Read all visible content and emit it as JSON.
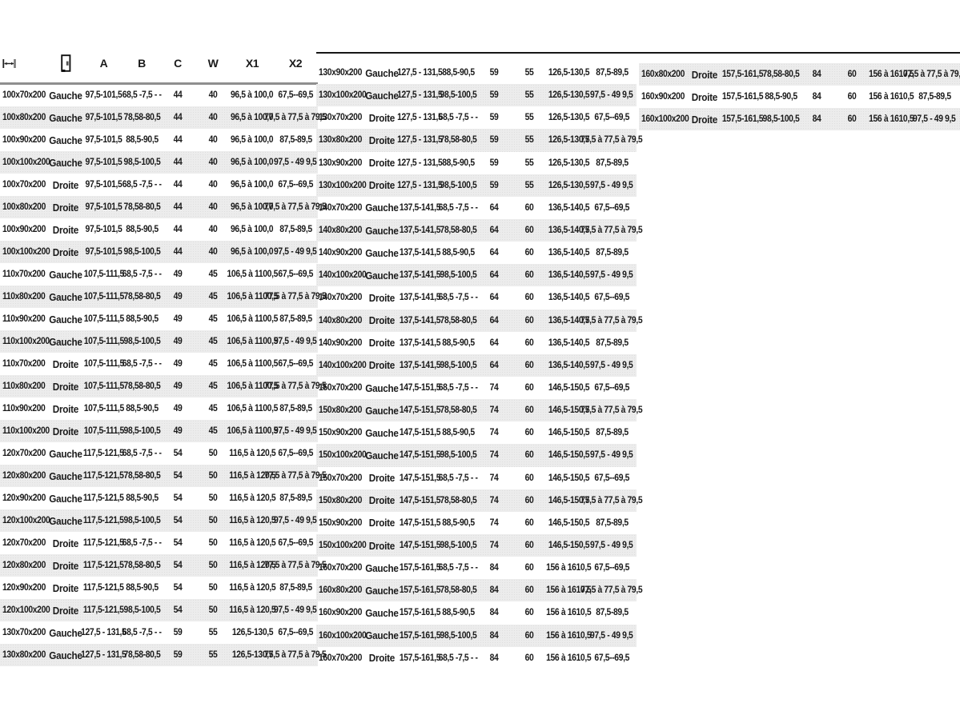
{
  "page": {
    "background": "#ffffff",
    "language": "fr"
  },
  "colors": {
    "text": "#1a1a1a",
    "stripe_gray": "#ececec",
    "header_rule": "#8f8f8f",
    "top_line": "#161616"
  },
  "header": {
    "icon_columns": [
      "width-dimension-icon",
      "door-icon"
    ],
    "labels": [
      "A",
      "B",
      "C",
      "W",
      "X1",
      "X2"
    ]
  },
  "cell_keys": [
    "size",
    "side",
    "A",
    "B",
    "C",
    "W",
    "X1",
    "X2"
  ],
  "tables": [
    {
      "id": "table-left",
      "stripe_start": "white",
      "rows": [
        [
          "100x70x200",
          "Gauche",
          "97,5-101,5",
          "68,5 -7,5 - -",
          "44",
          "40",
          "96,5 à 100,0",
          "67,5--69,5"
        ],
        [
          "100x80x200",
          "Gauche",
          "97,5-101,5",
          "78,58-80,5",
          "44",
          "40",
          "96,5 à 100,0",
          "77,5 à 77,5 à 79,5"
        ],
        [
          "100x90x200",
          "Gauche",
          "97,5-101,5",
          "88,5-90,5",
          "44",
          "40",
          "96,5 à 100,0",
          "87,5-89,5"
        ],
        [
          "100x100x200",
          "Gauche",
          "97,5-101,5",
          "98,5-100,5",
          "44",
          "40",
          "96,5 à 100,0",
          "97,5 - 49 9,5"
        ],
        [
          "100x70x200",
          "Droite",
          "97,5-101,5",
          "68,5 -7,5 - -",
          "44",
          "40",
          "96,5 à 100,0",
          "67,5--69,5"
        ],
        [
          "100x80x200",
          "Droite",
          "97,5-101,5",
          "78,58-80,5",
          "44",
          "40",
          "96,5 à 100,0",
          "77,5 à 77,5 à 79,5"
        ],
        [
          "100x90x200",
          "Droite",
          "97,5-101,5",
          "88,5-90,5",
          "44",
          "40",
          "96,5 à 100,0",
          "87,5-89,5"
        ],
        [
          "100x100x200",
          "Droite",
          "97,5-101,5",
          "98,5-100,5",
          "44",
          "40",
          "96,5 à 100,0",
          "97,5 - 49 9,5"
        ],
        [
          "110x70x200",
          "Gauche",
          "107,5-111,5",
          "68,5 -7,5 - -",
          "49",
          "45",
          "106,5 à 1100,5",
          "67,5--69,5"
        ],
        [
          "110x80x200",
          "Gauche",
          "107,5-111,5",
          "78,58-80,5",
          "49",
          "45",
          "106,5 à 1100,5",
          "77,5 à 77,5 à 79,5"
        ],
        [
          "110x90x200",
          "Gauche",
          "107,5-111,5",
          "88,5-90,5",
          "49",
          "45",
          "106,5 à 1100,5",
          "87,5-89,5"
        ],
        [
          "110x100x200",
          "Gauche",
          "107,5-111,5",
          "98,5-100,5",
          "49",
          "45",
          "106,5 à 1100,5",
          "97,5 - 49 9,5"
        ],
        [
          "110x70x200",
          "Droite",
          "107,5-111,5",
          "68,5 -7,5 - -",
          "49",
          "45",
          "106,5 à 1100,5",
          "67,5--69,5"
        ],
        [
          "110x80x200",
          "Droite",
          "107,5-111,5",
          "78,58-80,5",
          "49",
          "45",
          "106,5 à 1100,5",
          "77,5 à 77,5 à 79,5"
        ],
        [
          "110x90x200",
          "Droite",
          "107,5-111,5",
          "88,5-90,5",
          "49",
          "45",
          "106,5 à 1100,5",
          "87,5-89,5"
        ],
        [
          "110x100x200",
          "Droite",
          "107,5-111,5",
          "98,5-100,5",
          "49",
          "45",
          "106,5 à 1100,5",
          "97,5 - 49 9,5"
        ],
        [
          "120x70x200",
          "Gauche",
          "117,5-121,5",
          "68,5 -7,5 - -",
          "54",
          "50",
          "116,5 à 120,5",
          "67,5--69,5"
        ],
        [
          "120x80x200",
          "Gauche",
          "117,5-121,5",
          "78,58-80,5",
          "54",
          "50",
          "116,5 à 120,5",
          "77,5 à 77,5 à 79,5"
        ],
        [
          "120x90x200",
          "Gauche",
          "117,5-121,5",
          "88,5-90,5",
          "54",
          "50",
          "116,5 à 120,5",
          "87,5-89,5"
        ],
        [
          "120x100x200",
          "Gauche",
          "117,5-121,5",
          "98,5-100,5",
          "54",
          "50",
          "116,5 à 120,5",
          "97,5 - 49 9,5"
        ],
        [
          "120x70x200",
          "Droite",
          "117,5-121,5",
          "68,5 -7,5 - -",
          "54",
          "50",
          "116,5 à 120,5",
          "67,5--69,5"
        ],
        [
          "120x80x200",
          "Droite",
          "117,5-121,5",
          "78,58-80,5",
          "54",
          "50",
          "116,5 à 120,5",
          "77,5 à 77,5 à 79,5"
        ],
        [
          "120x90x200",
          "Droite",
          "117,5-121,5",
          "88,5-90,5",
          "54",
          "50",
          "116,5 à 120,5",
          "87,5-89,5"
        ],
        [
          "120x100x200",
          "Droite",
          "117,5-121,5",
          "98,5-100,5",
          "54",
          "50",
          "116,5 à 120,5",
          "97,5 - 49 9,5"
        ],
        [
          "130x70x200",
          "Gauche",
          "127,5 - 131,5",
          "68,5 -7,5 - -",
          "59",
          "55",
          "126,5-130,5",
          "67,5--69,5"
        ],
        [
          "130x80x200",
          "Gauche",
          "127,5 - 131,5",
          "78,58-80,5",
          "59",
          "55",
          "126,5-130,5",
          "77,5 à 77,5 à 79,5"
        ]
      ]
    },
    {
      "id": "table-middle",
      "stripe_start": "white",
      "rows": [
        [
          "130x90x200",
          "Gauche",
          "127,5 - 131,5",
          "88,5-90,5",
          "59",
          "55",
          "126,5-130,5",
          "87,5-89,5"
        ],
        [
          "130x100x200",
          "Gauche",
          "127,5 - 131,5",
          "98,5-100,5",
          "59",
          "55",
          "126,5-130,5",
          "97,5 - 49 9,5"
        ],
        [
          "130x70x200",
          "Droite",
          "127,5 - 131,5",
          "68,5 -7,5 - -",
          "59",
          "55",
          "126,5-130,5",
          "67,5--69,5"
        ],
        [
          "130x80x200",
          "Droite",
          "127,5 - 131,5",
          "78,58-80,5",
          "59",
          "55",
          "126,5-130,5",
          "77,5 à 77,5 à 79,5"
        ],
        [
          "130x90x200",
          "Droite",
          "127,5 - 131,5",
          "88,5-90,5",
          "59",
          "55",
          "126,5-130,5",
          "87,5-89,5"
        ],
        [
          "130x100x200",
          "Droite",
          "127,5 - 131,5",
          "98,5-100,5",
          "59",
          "55",
          "126,5-130,5",
          "97,5 - 49 9,5"
        ],
        [
          "140x70x200",
          "Gauche",
          "137,5-141,5",
          "68,5 -7,5 - -",
          "64",
          "60",
          "136,5-140,5",
          "67,5--69,5"
        ],
        [
          "140x80x200",
          "Gauche",
          "137,5-141,5",
          "78,58-80,5",
          "64",
          "60",
          "136,5-140,5",
          "77,5 à 77,5 à 79,5"
        ],
        [
          "140x90x200",
          "Gauche",
          "137,5-141,5",
          "88,5-90,5",
          "64",
          "60",
          "136,5-140,5",
          "87,5-89,5"
        ],
        [
          "140x100x200",
          "Gauche",
          "137,5-141,5",
          "98,5-100,5",
          "64",
          "60",
          "136,5-140,5",
          "97,5 - 49 9,5"
        ],
        [
          "140x70x200",
          "Droite",
          "137,5-141,5",
          "68,5 -7,5 - -",
          "64",
          "60",
          "136,5-140,5",
          "67,5--69,5"
        ],
        [
          "140x80x200",
          "Droite",
          "137,5-141,5",
          "78,58-80,5",
          "64",
          "60",
          "136,5-140,5",
          "77,5 à 77,5 à 79,5"
        ],
        [
          "140x90x200",
          "Droite",
          "137,5-141,5",
          "88,5-90,5",
          "64",
          "60",
          "136,5-140,5",
          "87,5-89,5"
        ],
        [
          "140x100x200",
          "Droite",
          "137,5-141,5",
          "98,5-100,5",
          "64",
          "60",
          "136,5-140,5",
          "97,5 - 49 9,5"
        ],
        [
          "150x70x200",
          "Gauche",
          "147,5-151,5",
          "68,5 -7,5 - -",
          "74",
          "60",
          "146,5-150,5",
          "67,5--69,5"
        ],
        [
          "150x80x200",
          "Gauche",
          "147,5-151,5",
          "78,58-80,5",
          "74",
          "60",
          "146,5-150,5",
          "77,5 à 77,5 à 79,5"
        ],
        [
          "150x90x200",
          "Gauche",
          "147,5-151,5",
          "88,5-90,5",
          "74",
          "60",
          "146,5-150,5",
          "87,5-89,5"
        ],
        [
          "150x100x200",
          "Gauche",
          "147,5-151,5",
          "98,5-100,5",
          "74",
          "60",
          "146,5-150,5",
          "97,5 - 49 9,5"
        ],
        [
          "150x70x200",
          "Droite",
          "147,5-151,5",
          "68,5 -7,5 - -",
          "74",
          "60",
          "146,5-150,5",
          "67,5--69,5"
        ],
        [
          "150x80x200",
          "Droite",
          "147,5-151,5",
          "78,58-80,5",
          "74",
          "60",
          "146,5-150,5",
          "77,5 à 77,5 à 79,5"
        ],
        [
          "150x90x200",
          "Droite",
          "147,5-151,5",
          "88,5-90,5",
          "74",
          "60",
          "146,5-150,5",
          "87,5-89,5"
        ],
        [
          "150x100x200",
          "Droite",
          "147,5-151,5",
          "98,5-100,5",
          "74",
          "60",
          "146,5-150,5",
          "97,5 - 49 9,5"
        ],
        [
          "160x70x200",
          "Gauche",
          "157,5-161,5",
          "68,5 -7,5 - -",
          "84",
          "60",
          "156 à 1610,5",
          "67,5--69,5"
        ],
        [
          "160x80x200",
          "Gauche",
          "157,5-161,5",
          "78,58-80,5",
          "84",
          "60",
          "156 à 1610,5",
          "77,5 à 77,5 à 79,5"
        ],
        [
          "160x90x200",
          "Gauche",
          "157,5-161,5",
          "88,5-90,5",
          "84",
          "60",
          "156 à 1610,5",
          "87,5-89,5"
        ],
        [
          "160x100x200",
          "Gauche",
          "157,5-161,5",
          "98,5-100,5",
          "84",
          "60",
          "156 à 1610,5",
          "97,5 - 49 9,5"
        ],
        [
          "160x70x200",
          "Droite",
          "157,5-161,5",
          "68,5 -7,5 - -",
          "84",
          "60",
          "156 à 1610,5",
          "67,5--69,5"
        ]
      ]
    },
    {
      "id": "table-right",
      "stripe_start": "gray",
      "rows": [
        [
          "160x80x200",
          "Droite",
          "157,5-161,5",
          "78,58-80,5",
          "84",
          "60",
          "156 à 1610,5",
          "77,5 à 77,5 à 79,5"
        ],
        [
          "160x90x200",
          "Droite",
          "157,5-161,5",
          "88,5-90,5",
          "84",
          "60",
          "156 à 1610,5",
          "87,5-89,5"
        ],
        [
          "160x100x200",
          "Droite",
          "157,5-161,5",
          "98,5-100,5",
          "84",
          "60",
          "156 à 1610,5",
          "97,5 - 49 9,5"
        ]
      ]
    }
  ]
}
